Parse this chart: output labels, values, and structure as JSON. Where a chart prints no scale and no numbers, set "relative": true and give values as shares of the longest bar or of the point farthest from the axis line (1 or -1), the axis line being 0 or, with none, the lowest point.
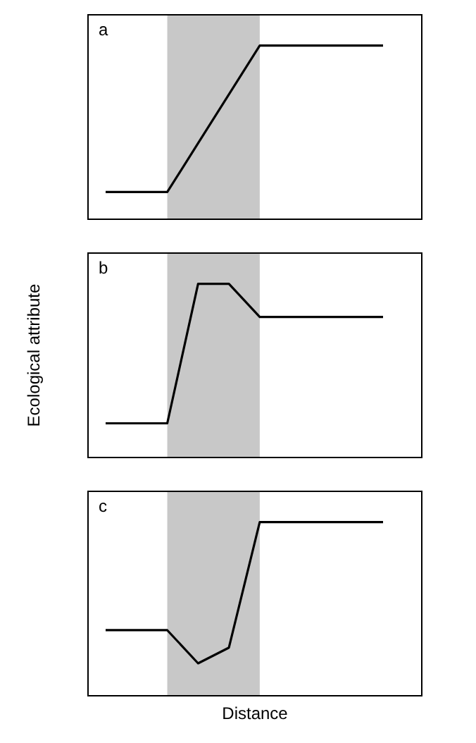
{
  "chart_data": [
    {
      "type": "line",
      "relative": true,
      "annotations": [
        "a"
      ],
      "categories": [
        null,
        null,
        null,
        null,
        null,
        null,
        null,
        null,
        null,
        null
      ],
      "marker": "none",
      "line_style": "solid",
      "series": [
        {
          "color": "#000000",
          "values": [
            0.16,
            0.16,
            0.16,
            0.44,
            0.72,
            1,
            1,
            1,
            1,
            1
          ]
        }
      ]
    },
    {
      "type": "line",
      "relative": true,
      "annotations": [
        "b"
      ],
      "ylabel": "Ecological attribute",
      "categories": [
        null,
        null,
        null,
        null,
        null,
        null,
        null,
        null,
        null,
        null
      ],
      "marker": "none",
      "line_style": "solid",
      "series": [
        {
          "color": "#000000",
          "values": [
            0.2,
            0.2,
            0.2,
            1,
            1,
            0.81,
            0.81,
            0.81,
            0.81,
            0.81
          ]
        }
      ]
    },
    {
      "type": "line",
      "relative": true,
      "annotations": [
        "c"
      ],
      "xlabel": "Distance",
      "categories": [
        null,
        null,
        null,
        null,
        null,
        null,
        null,
        null,
        null,
        null
      ],
      "marker": "none",
      "line_style": "solid",
      "series": [
        {
          "color": "#000000",
          "values": [
            0.38,
            0.38,
            0.38,
            0.19,
            0.28,
            1,
            1,
            1,
            1,
            1
          ]
        }
      ]
    }
  ]
}
